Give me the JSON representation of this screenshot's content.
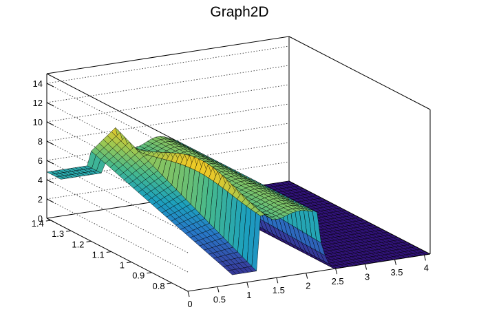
{
  "chart_data": {
    "type": "surface",
    "title": "Graph2D",
    "palette": "viridis-like (dark blue to yellow)",
    "grid": "dotted lines on back walls",
    "x_axis": {
      "range": [
        0,
        4.1
      ],
      "ticks": [
        "0",
        "0.5",
        "1",
        "1.5",
        "2",
        "2.5",
        "3",
        "3.5",
        "4"
      ]
    },
    "y_axis": {
      "range": [
        0.72,
        1.42
      ],
      "ticks": [
        "0.8",
        "0.9",
        "1",
        "1.1",
        "1.2",
        "1.3",
        "1.4"
      ]
    },
    "z_axis": {
      "range": [
        0,
        15
      ],
      "ticks": [
        "0",
        "2",
        "4",
        "6",
        "8",
        "10",
        "12",
        "14"
      ]
    },
    "surface_description": [
      {
        "x_range": [
          0.0,
          0.7
        ],
        "z_approx": 4.8,
        "note": "flat plateau, only at high y"
      },
      {
        "x_range": [
          0.7,
          1.2
        ],
        "z_approx": [
          1,
          9
        ],
        "note": "steep wall rising with y"
      },
      {
        "x_range": [
          1.2,
          2.2
        ],
        "z_approx": 6.5,
        "note": "plateau with peak ~9 near x=1.3"
      },
      {
        "x_range": [
          2.2,
          2.5
        ],
        "z_approx": [
          0,
          6
        ],
        "note": "drop-off to zero"
      },
      {
        "x_range": [
          2.5,
          4.1
        ],
        "z_approx": 0,
        "note": "flat floor"
      }
    ]
  }
}
